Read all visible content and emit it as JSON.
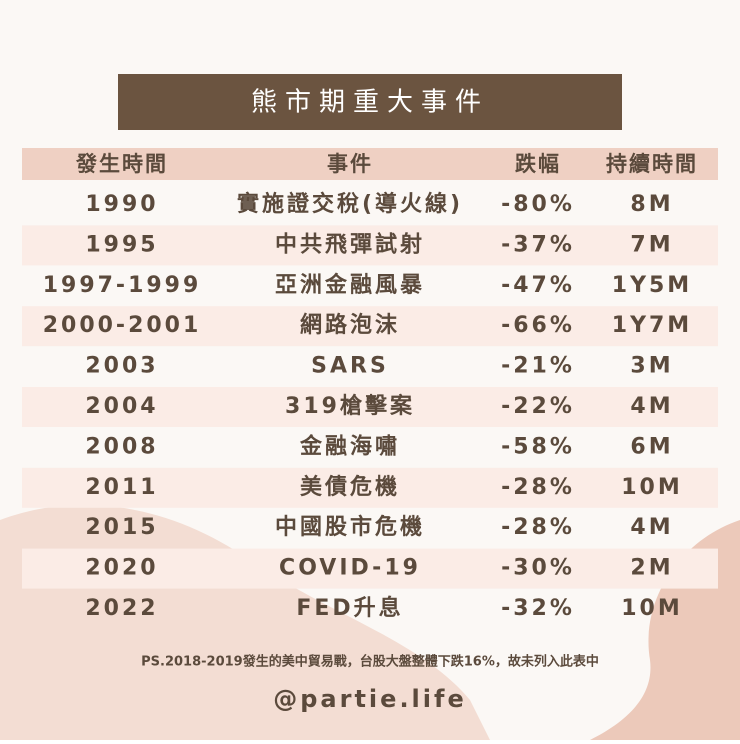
{
  "header": {
    "title": "熊市期重大事件"
  },
  "table": {
    "columns": [
      "發生時間",
      "事件",
      "跌幅",
      "持續時間"
    ],
    "rows": [
      [
        "1990",
        "實施證交稅(導火線)",
        "-80%",
        "8M"
      ],
      [
        "1995",
        "中共飛彈試射",
        "-37%",
        "7M"
      ],
      [
        "1997-1999",
        "亞洲金融風暴",
        "-47%",
        "1Y5M"
      ],
      [
        "2000-2001",
        "網路泡沫",
        "-66%",
        "1Y7M"
      ],
      [
        "2003",
        "SARS",
        "-21%",
        "3M"
      ],
      [
        "2004",
        "319槍擊案",
        "-22%",
        "4M"
      ],
      [
        "2008",
        "金融海嘯",
        "-58%",
        "6M"
      ],
      [
        "2011",
        "美債危機",
        "-28%",
        "10M"
      ],
      [
        "2015",
        "中國股市危機",
        "-28%",
        "4M"
      ],
      [
        "2020",
        "COVID-19",
        "-30%",
        "2M"
      ],
      [
        "2022",
        "FED升息",
        "-32%",
        "10M"
      ]
    ]
  },
  "footer": {
    "note": "PS.2018-2019發生的美中貿易戰，台股大盤整體下跌16%，故未列入此表中",
    "handle": "@partie.life"
  }
}
